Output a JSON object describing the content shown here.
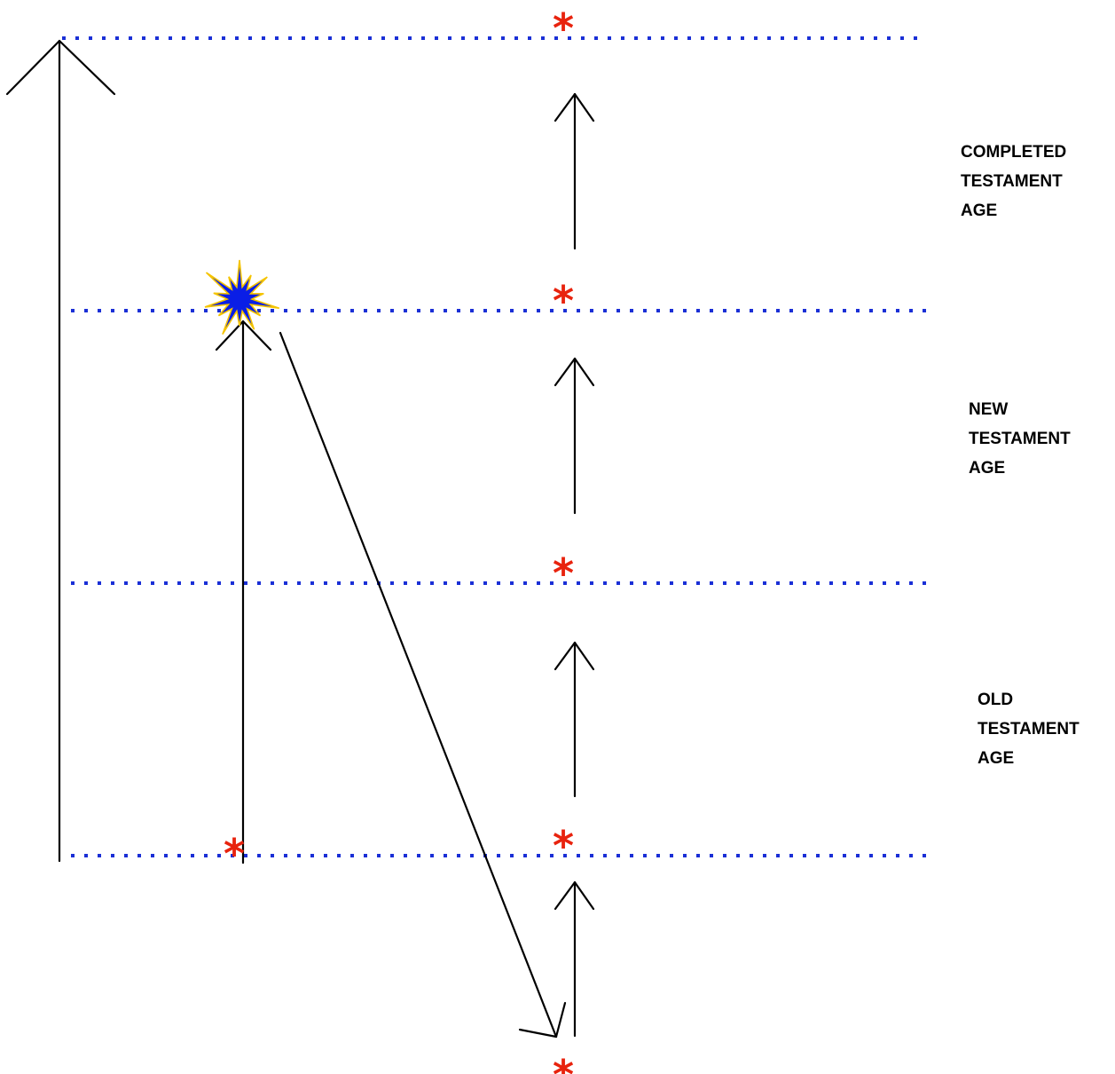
{
  "colors": {
    "divider": "#1a2fd6",
    "asterisk": "#e8230e",
    "arrow": "#000000",
    "burst_fill": "#0a1ee6",
    "burst_outline": "#f5c400"
  },
  "asterisk_glyph": "*",
  "icons": {
    "burst": "starburst-icon",
    "asterisk": "asterisk-icon"
  },
  "ages": [
    {
      "lines": [
        "COMPLETED",
        "TESTAMENT",
        "AGE"
      ]
    },
    {
      "lines": [
        "NEW",
        "TESTAMENT",
        "AGE"
      ]
    },
    {
      "lines": [
        "OLD",
        "TESTAMENT",
        "AGE"
      ]
    }
  ]
}
